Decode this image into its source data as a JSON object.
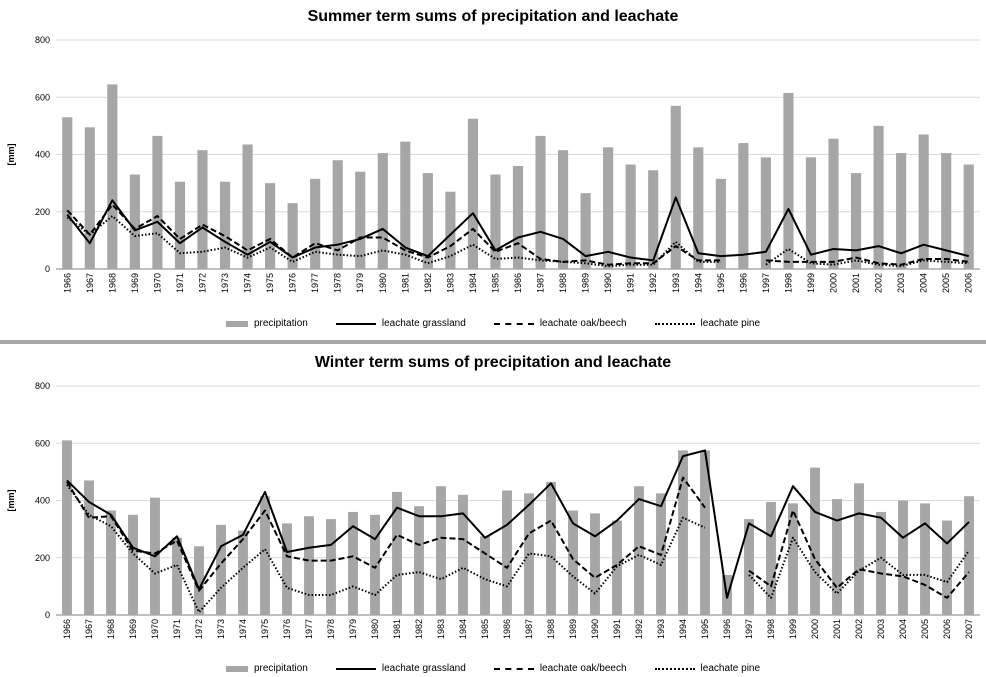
{
  "chart_data": [
    {
      "type": "bar",
      "title": "Summer term sums of precipitation and leachate",
      "ylabel": "[mm]",
      "ylim": [
        0,
        800
      ],
      "yticks": [
        0,
        200,
        400,
        600,
        800
      ],
      "grid": "horizontal",
      "legend_position": "bottom",
      "categories": [
        "1966",
        "1967",
        "1968",
        "1969",
        "1970",
        "1971",
        "1972",
        "1973",
        "1974",
        "1975",
        "1976",
        "1977",
        "1978",
        "1979",
        "1980",
        "1981",
        "1982",
        "1983",
        "1984",
        "1985",
        "1986",
        "1987",
        "1988",
        "1989",
        "1990",
        "1991",
        "1992",
        "1993",
        "1994",
        "1995",
        "1996",
        "1997",
        "1998",
        "1999",
        "2000",
        "2001",
        "2002",
        "2003",
        "2004",
        "2005",
        "2006"
      ],
      "series": [
        {
          "name": "precipitation",
          "kind": "bar",
          "color": "#a6a6a6",
          "values": [
            530,
            495,
            645,
            330,
            465,
            305,
            415,
            305,
            435,
            300,
            230,
            315,
            380,
            340,
            405,
            445,
            335,
            270,
            525,
            330,
            360,
            465,
            415,
            265,
            425,
            365,
            345,
            570,
            425,
            315,
            440,
            390,
            615,
            390,
            455,
            335,
            500,
            405,
            470,
            405,
            365
          ]
        },
        {
          "name": "leachate grassland",
          "kind": "line",
          "style": "solid",
          "values": [
            190,
            90,
            240,
            135,
            165,
            90,
            145,
            95,
            50,
            95,
            40,
            75,
            85,
            105,
            140,
            75,
            45,
            120,
            195,
            65,
            110,
            130,
            105,
            45,
            60,
            40,
            30,
            250,
            55,
            45,
            50,
            60,
            210,
            50,
            70,
            65,
            80,
            55,
            85,
            65,
            45
          ]
        },
        {
          "name": "leachate oak/beech",
          "kind": "line",
          "style": "dashed",
          "values": [
            205,
            120,
            225,
            140,
            185,
            105,
            155,
            115,
            65,
            105,
            40,
            90,
            65,
            110,
            110,
            65,
            40,
            80,
            140,
            60,
            90,
            35,
            25,
            30,
            15,
            20,
            20,
            80,
            30,
            30,
            null,
            30,
            25,
            25,
            25,
            40,
            20,
            15,
            35,
            35,
            25
          ]
        },
        {
          "name": "leachate pine",
          "kind": "line",
          "style": "dotted",
          "values": [
            180,
            120,
            185,
            115,
            125,
            55,
            60,
            75,
            40,
            75,
            25,
            60,
            50,
            45,
            65,
            50,
            20,
            45,
            85,
            35,
            40,
            30,
            25,
            20,
            10,
            15,
            15,
            95,
            25,
            25,
            null,
            15,
            70,
            20,
            15,
            30,
            15,
            10,
            30,
            25,
            20
          ]
        }
      ]
    },
    {
      "type": "bar",
      "title": "Winter term sums of precipitation and leachate",
      "ylabel": "[mm]",
      "ylim": [
        0,
        800
      ],
      "yticks": [
        0,
        200,
        400,
        600,
        800
      ],
      "grid": "horizontal",
      "legend_position": "bottom",
      "categories": [
        "1966",
        "1967",
        "1968",
        "1969",
        "1970",
        "1971",
        "1972",
        "1973",
        "1974",
        "1975",
        "1976",
        "1977",
        "1978",
        "1979",
        "1980",
        "1981",
        "1982",
        "1983",
        "1984",
        "1985",
        "1986",
        "1987",
        "1988",
        "1989",
        "1990",
        "1991",
        "1992",
        "1993",
        "1994",
        "1995",
        "1996",
        "1997",
        "1998",
        "1999",
        "2000",
        "2001",
        "2002",
        "2003",
        "2004",
        "2005",
        "2006",
        "2007"
      ],
      "series": [
        {
          "name": "precipitation",
          "kind": "bar",
          "color": "#a6a6a6",
          "values": [
            610,
            470,
            365,
            350,
            410,
            270,
            240,
            315,
            295,
            415,
            320,
            345,
            335,
            360,
            350,
            430,
            380,
            450,
            420,
            275,
            435,
            425,
            465,
            365,
            355,
            330,
            450,
            425,
            575,
            575,
            140,
            335,
            395,
            390,
            515,
            405,
            460,
            360,
            400,
            390,
            330,
            415
          ]
        },
        {
          "name": "leachate grassland",
          "kind": "line",
          "style": "solid",
          "values": [
            470,
            395,
            350,
            235,
            205,
            275,
            90,
            240,
            280,
            430,
            220,
            235,
            245,
            310,
            265,
            375,
            345,
            345,
            355,
            270,
            315,
            385,
            460,
            320,
            275,
            330,
            405,
            380,
            555,
            575,
            60,
            320,
            275,
            450,
            360,
            330,
            355,
            340,
            270,
            320,
            250,
            325
          ]
        },
        {
          "name": "leachate oak/beech",
          "kind": "line",
          "style": "dashed",
          "values": [
            465,
            340,
            345,
            225,
            215,
            260,
            85,
            180,
            265,
            365,
            205,
            190,
            190,
            205,
            165,
            280,
            245,
            270,
            265,
            215,
            165,
            285,
            330,
            195,
            130,
            175,
            240,
            210,
            480,
            375,
            null,
            155,
            100,
            365,
            195,
            95,
            160,
            145,
            135,
            105,
            60,
            150
          ]
        },
        {
          "name": "leachate pine",
          "kind": "line",
          "style": "dotted",
          "values": [
            455,
            350,
            310,
            215,
            145,
            175,
            10,
            95,
            165,
            230,
            95,
            70,
            70,
            100,
            70,
            140,
            150,
            125,
            165,
            125,
            100,
            215,
            205,
            135,
            75,
            170,
            210,
            175,
            340,
            305,
            null,
            140,
            60,
            270,
            150,
            75,
            155,
            200,
            140,
            140,
            115,
            225
          ]
        }
      ]
    }
  ]
}
